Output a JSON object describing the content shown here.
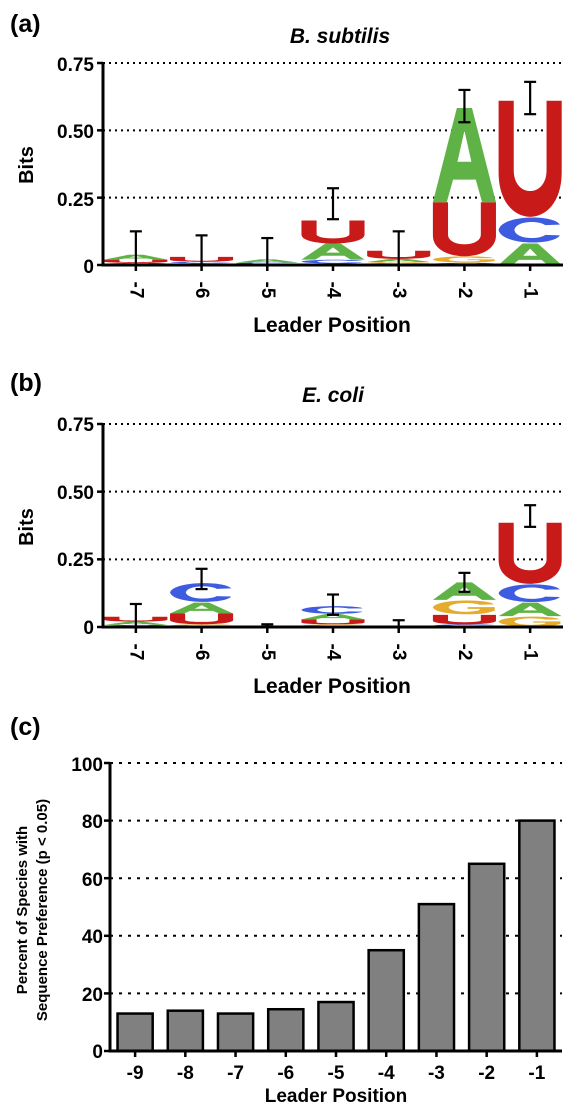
{
  "chart_data": [
    {
      "panel_label": "(a)",
      "type": "sequence-logo",
      "title": "B. subtilis",
      "xlabel": "Leader Position",
      "ylabel": "Bits",
      "ylim": [
        0,
        0.75
      ],
      "yticks": [
        "0",
        "0.25",
        "0.50",
        "0.75"
      ],
      "ytick_values": [
        0,
        0.25,
        0.5,
        0.75
      ],
      "grid": true,
      "categories": [
        "-7",
        "-6",
        "-5",
        "-4",
        "-3",
        "-2",
        "-1"
      ],
      "letters": [
        [
          {
            "letter": "C",
            "height": 0.008
          },
          {
            "letter": "U",
            "height": 0.012
          },
          {
            "letter": "A",
            "height": 0.018
          }
        ],
        [
          {
            "letter": "A",
            "height": 0.006
          },
          {
            "letter": "C",
            "height": 0.006
          },
          {
            "letter": "U",
            "height": 0.018
          }
        ],
        [
          {
            "letter": "G",
            "height": 0.004
          },
          {
            "letter": "C",
            "height": 0.005
          },
          {
            "letter": "A",
            "height": 0.012
          }
        ],
        [
          {
            "letter": "G",
            "height": 0.005
          },
          {
            "letter": "C",
            "height": 0.015
          },
          {
            "letter": "A",
            "height": 0.06
          },
          {
            "letter": "U",
            "height": 0.085
          }
        ],
        [
          {
            "letter": "C",
            "height": 0.005
          },
          {
            "letter": "G",
            "height": 0.006
          },
          {
            "letter": "A",
            "height": 0.012
          },
          {
            "letter": "U",
            "height": 0.03
          }
        ],
        [
          {
            "letter": "C",
            "height": 0.008
          },
          {
            "letter": "G",
            "height": 0.025
          },
          {
            "letter": "U",
            "height": 0.2
          },
          {
            "letter": "A",
            "height": 0.35
          }
        ],
        [
          {
            "letter": "A",
            "height": 0.08
          },
          {
            "letter": "C",
            "height": 0.1
          },
          {
            "letter": "U",
            "height": 0.43
          }
        ]
      ],
      "error": [
        {
          "center": 0.045,
          "low": 0.0,
          "high": 0.125
        },
        {
          "center": 0.03,
          "low": 0.0,
          "high": 0.11
        },
        {
          "center": 0.02,
          "low": 0.0,
          "high": 0.1
        },
        {
          "center": 0.23,
          "low": 0.17,
          "high": 0.285
        },
        {
          "center": 0.04,
          "low": 0.0,
          "high": 0.125
        },
        {
          "center": 0.585,
          "low": 0.53,
          "high": 0.65
        },
        {
          "center": 0.62,
          "low": 0.56,
          "high": 0.68
        }
      ]
    },
    {
      "panel_label": "(b)",
      "type": "sequence-logo",
      "title": "E. coli",
      "xlabel": "Leader Position",
      "ylabel": "Bits",
      "ylim": [
        0,
        0.75
      ],
      "yticks": [
        "0",
        "0.25",
        "0.50",
        "0.75"
      ],
      "ytick_values": [
        0,
        0.25,
        0.5,
        0.75
      ],
      "grid": true,
      "categories": [
        "-7",
        "-6",
        "-5",
        "-4",
        "-3",
        "-2",
        "-1"
      ],
      "letters": [
        [
          {
            "letter": "C",
            "height": 0.008
          },
          {
            "letter": "A",
            "height": 0.012
          },
          {
            "letter": "U",
            "height": 0.018
          }
        ],
        [
          {
            "letter": "G",
            "height": 0.01
          },
          {
            "letter": "U",
            "height": 0.04
          },
          {
            "letter": "A",
            "height": 0.04
          },
          {
            "letter": "C",
            "height": 0.075
          }
        ],
        [
          {
            "letter": "U",
            "height": 0.003
          }
        ],
        [
          {
            "letter": "G",
            "height": 0.01
          },
          {
            "letter": "U",
            "height": 0.018
          },
          {
            "letter": "A",
            "height": 0.02
          },
          {
            "letter": "C",
            "height": 0.03
          }
        ],
        [
          {
            "letter": "U",
            "height": 0.002
          }
        ],
        [
          {
            "letter": "C",
            "height": 0.01
          },
          {
            "letter": "U",
            "height": 0.035
          },
          {
            "letter": "G",
            "height": 0.055
          },
          {
            "letter": "A",
            "height": 0.065
          }
        ],
        [
          {
            "letter": "G",
            "height": 0.04
          },
          {
            "letter": "A",
            "height": 0.05
          },
          {
            "letter": "C",
            "height": 0.07
          },
          {
            "letter": "U",
            "height": 0.225
          }
        ]
      ],
      "error": [
        {
          "center": 0.04,
          "low": 0.0,
          "high": 0.085
        },
        {
          "center": 0.18,
          "low": 0.14,
          "high": 0.215
        },
        {
          "center": 0.005,
          "low": 0.0,
          "high": 0.01
        },
        {
          "center": 0.085,
          "low": 0.045,
          "high": 0.12
        },
        {
          "center": 0.01,
          "low": 0.0,
          "high": 0.025
        },
        {
          "center": 0.17,
          "low": 0.13,
          "high": 0.2
        },
        {
          "center": 0.41,
          "low": 0.37,
          "high": 0.45
        }
      ]
    },
    {
      "panel_label": "(c)",
      "type": "bar",
      "title": "",
      "xlabel": "Leader Position",
      "ylabel_lines": [
        "Percent of Species with",
        "Sequence Preference (p < 0.05)"
      ],
      "ylim": [
        0,
        100
      ],
      "yticks": [
        "0",
        "20",
        "40",
        "60",
        "80",
        "100"
      ],
      "ytick_values": [
        0,
        20,
        40,
        60,
        80,
        100
      ],
      "grid": true,
      "categories": [
        "-9",
        "-8",
        "-7",
        "-6",
        "-5",
        "-4",
        "-3",
        "-2",
        "-1"
      ],
      "values": [
        13,
        14,
        13,
        14.5,
        17,
        35,
        51,
        65,
        80
      ]
    }
  ],
  "colors": {
    "A": "#5fb346",
    "C": "#3e5ce0",
    "G": "#e4ab2d",
    "U": "#c91a1a",
    "bar": "#808080",
    "axis": "#000000"
  }
}
